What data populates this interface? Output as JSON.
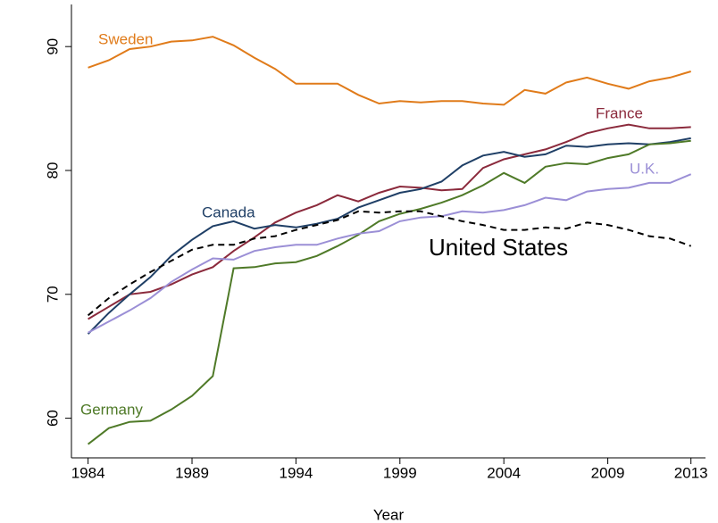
{
  "chart_data": {
    "type": "line",
    "x_label": "Year",
    "x": [
      1984,
      1985,
      1986,
      1987,
      1988,
      1989,
      1990,
      1991,
      1992,
      1993,
      1994,
      1995,
      1996,
      1997,
      1998,
      1999,
      2000,
      2001,
      2002,
      2003,
      2004,
      2005,
      2006,
      2007,
      2008,
      2009,
      2010,
      2011,
      2012,
      2013
    ],
    "xlim": [
      1983.2,
      2013.7
    ],
    "xticks": [
      1984,
      1989,
      1994,
      1999,
      2004,
      2009,
      2013
    ],
    "ylim": [
      56.8,
      93.4
    ],
    "yticks": [
      60,
      70,
      80,
      90
    ],
    "grid": false,
    "series": [
      {
        "name": "Sweden",
        "color": "#e07b1a",
        "values": [
          88.3,
          88.9,
          89.8,
          90.0,
          90.4,
          90.5,
          90.8,
          90.1,
          89.1,
          88.2,
          87.0,
          87.0,
          87.0,
          86.1,
          85.4,
          85.6,
          85.5,
          85.6,
          85.6,
          85.4,
          85.3,
          86.5,
          86.2,
          87.1,
          87.5,
          87.0,
          86.6,
          87.2,
          87.5,
          88.0
        ]
      },
      {
        "name": "France",
        "color": "#8b2a3c",
        "values": [
          68.0,
          69.0,
          70.0,
          70.2,
          70.8,
          71.6,
          72.2,
          73.5,
          74.6,
          75.8,
          76.6,
          77.2,
          78.0,
          77.5,
          78.2,
          78.7,
          78.6,
          78.4,
          78.5,
          80.2,
          80.9,
          81.3,
          81.7,
          82.3,
          83.0,
          83.4,
          83.7,
          83.4,
          83.4,
          83.5
        ]
      },
      {
        "name": "Canada",
        "color": "#1f3f66",
        "values": [
          66.8,
          68.5,
          70.0,
          71.4,
          73.1,
          74.4,
          75.5,
          75.9,
          75.3,
          75.6,
          75.4,
          75.7,
          76.1,
          77.0,
          77.6,
          78.2,
          78.5,
          79.1,
          80.4,
          81.2,
          81.5,
          81.1,
          81.3,
          82.0,
          81.9,
          82.1,
          82.2,
          82.1,
          82.3,
          82.6
        ]
      },
      {
        "name": "Germany",
        "color": "#4f7a28",
        "values": [
          57.9,
          59.2,
          59.7,
          59.8,
          60.7,
          61.8,
          63.4,
          72.1,
          72.2,
          72.5,
          72.6,
          73.1,
          73.9,
          74.8,
          75.9,
          76.5,
          76.9,
          77.4,
          78.0,
          78.8,
          79.8,
          79.0,
          80.3,
          80.6,
          80.5,
          81.0,
          81.3,
          82.1,
          82.2,
          82.4
        ]
      },
      {
        "name": "U.K.",
        "color": "#9b8fd6",
        "values": [
          66.9,
          67.8,
          68.7,
          69.7,
          71.0,
          72.0,
          72.9,
          72.8,
          73.5,
          73.8,
          74.0,
          74.0,
          74.5,
          74.9,
          75.1,
          75.9,
          76.2,
          76.3,
          76.7,
          76.6,
          76.8,
          77.2,
          77.8,
          77.6,
          78.3,
          78.5,
          78.6,
          79.0,
          79.0,
          79.7
        ]
      },
      {
        "name": "United States",
        "color": "#000000",
        "dashed": true,
        "values": [
          68.3,
          69.7,
          70.8,
          71.8,
          72.7,
          73.6,
          74.0,
          74.0,
          74.5,
          74.7,
          75.2,
          75.6,
          76.0,
          76.7,
          76.6,
          76.7,
          76.7,
          76.3,
          75.9,
          75.6,
          75.2,
          75.2,
          75.4,
          75.3,
          75.8,
          75.6,
          75.2,
          74.7,
          74.5,
          73.9
        ]
      }
    ]
  }
}
